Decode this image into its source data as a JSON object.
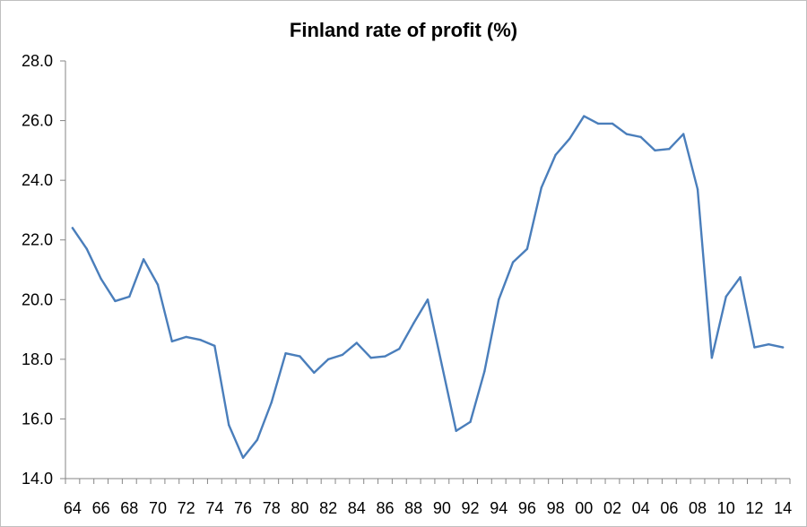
{
  "chart_data": {
    "type": "line",
    "title": "Finland rate of profit (%)",
    "xlabel": "",
    "ylabel": "",
    "ylim": [
      14.0,
      28.0
    ],
    "y_ticks": [
      "14.0",
      "16.0",
      "18.0",
      "20.0",
      "22.0",
      "24.0",
      "26.0",
      "28.0"
    ],
    "x_tick_labels": [
      "64",
      "66",
      "68",
      "70",
      "72",
      "74",
      "76",
      "78",
      "80",
      "82",
      "84",
      "86",
      "88",
      "90",
      "92",
      "94",
      "96",
      "98",
      "00",
      "02",
      "04",
      "06",
      "08",
      "10",
      "12",
      "14"
    ],
    "grid": false,
    "legend": "none",
    "line_color": "#4a7ebb",
    "series": [
      {
        "name": "Rate of profit",
        "x": [
          "1964",
          "1965",
          "1966",
          "1967",
          "1968",
          "1969",
          "1970",
          "1971",
          "1972",
          "1973",
          "1974",
          "1975",
          "1976",
          "1977",
          "1978",
          "1979",
          "1980",
          "1981",
          "1982",
          "1983",
          "1984",
          "1985",
          "1986",
          "1987",
          "1988",
          "1989",
          "1990",
          "1991",
          "1992",
          "1993",
          "1994",
          "1995",
          "1996",
          "1997",
          "1998",
          "1999",
          "2000",
          "2001",
          "2002",
          "2003",
          "2004",
          "2005",
          "2006",
          "2007",
          "2008",
          "2009",
          "2010",
          "2011",
          "2012",
          "2013",
          "2014"
        ],
        "values": [
          22.4,
          21.7,
          20.7,
          19.95,
          20.1,
          21.35,
          20.5,
          18.6,
          18.75,
          18.65,
          18.45,
          15.8,
          14.7,
          15.3,
          16.55,
          18.2,
          18.1,
          17.55,
          18.0,
          18.15,
          18.55,
          18.05,
          18.1,
          18.35,
          19.2,
          20.0,
          17.8,
          15.6,
          15.9,
          17.6,
          20.0,
          21.25,
          21.7,
          23.75,
          24.85,
          25.4,
          26.15,
          25.9,
          25.9,
          25.55,
          25.45,
          25.0,
          25.05,
          25.55,
          23.7,
          18.05,
          20.1,
          20.75,
          18.4,
          18.5,
          18.4
        ]
      }
    ]
  }
}
